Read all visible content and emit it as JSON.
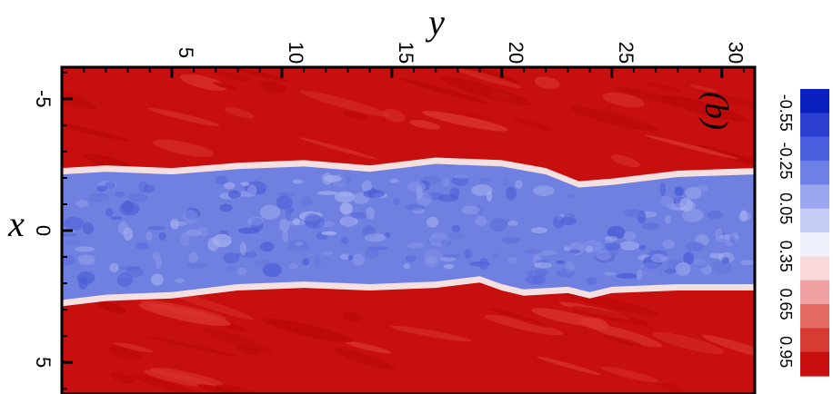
{
  "chart_data": {
    "type": "heatmap",
    "panel_label": "(b)",
    "xlabel": "y",
    "ylabel": "x",
    "x_axis": {
      "label": "y",
      "position": "top",
      "range": [
        0,
        31.5
      ],
      "ticks": [
        5,
        10,
        15,
        20,
        25,
        30
      ],
      "tick_labels": [
        "5",
        "10",
        "15",
        "20",
        "25",
        "30"
      ]
    },
    "y_axis": {
      "label": "x",
      "position": "left",
      "range": [
        -6.2,
        6.2
      ],
      "inverted": true,
      "ticks": [
        -5,
        0,
        5
      ],
      "tick_labels": [
        "-5",
        "0",
        "5"
      ]
    },
    "colorbar": {
      "tick_values": [
        -0.55,
        -0.25,
        0.05,
        0.35,
        0.65,
        0.95
      ],
      "tick_labels": [
        "-0.55",
        "-0.25",
        "0.05",
        "0.35",
        "0.65",
        "0.95"
      ],
      "range": [
        -0.7,
        1.1
      ],
      "levels": 12,
      "colors": [
        "#0a1fbf",
        "#2a3fd0",
        "#4a5fdd",
        "#6e80e6",
        "#9aa6ee",
        "#c5cdf6",
        "#eef0fb",
        "#f8d8d8",
        "#f0a0a0",
        "#e66a64",
        "#d83a34",
        "#c80f0f"
      ]
    },
    "upper_interface": {
      "y": [
        0,
        2,
        5,
        8,
        11,
        14,
        17,
        20,
        22,
        23.5,
        25,
        28,
        31.5
      ],
      "x": [
        -2.2,
        -2.3,
        -2.2,
        -2.4,
        -2.5,
        -2.3,
        -2.6,
        -2.5,
        -2.2,
        -1.7,
        -1.8,
        -2.1,
        -2.2
      ]
    },
    "lower_interface": {
      "y": [
        0,
        2,
        5,
        8,
        11,
        14,
        17,
        19,
        20,
        21,
        23,
        24,
        25,
        28,
        31.5
      ],
      "x": [
        2.7,
        2.5,
        2.4,
        2.1,
        2.0,
        2.1,
        2.0,
        1.8,
        2.1,
        2.3,
        2.2,
        2.4,
        2.2,
        2.1,
        2.1
      ]
    },
    "background_value": 1.0,
    "core_value": -0.45
  }
}
